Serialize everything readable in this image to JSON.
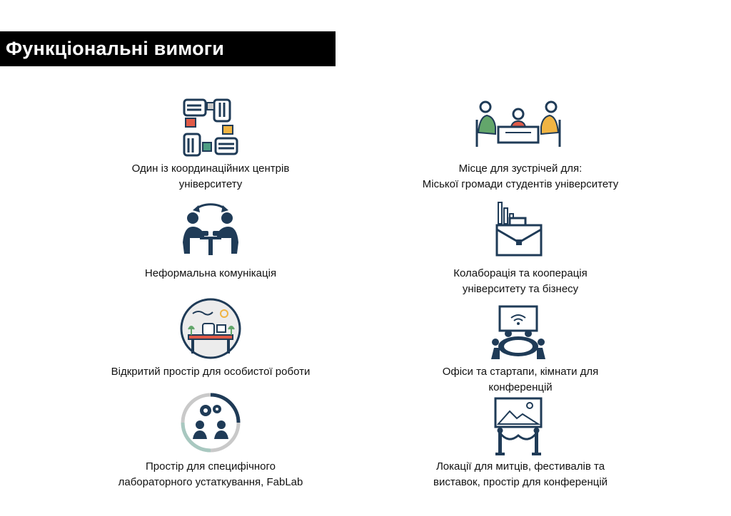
{
  "header": {
    "title": "Функціональні вимоги"
  },
  "colors": {
    "navy": "#1f3b57",
    "red": "#e05a47",
    "teal": "#4e9e84",
    "yellow": "#f0b443",
    "grey": "#c9c9c9",
    "green": "#63a66b"
  },
  "left": [
    {
      "icon": "hands-circle-icon",
      "lines": [
        "Один із координаційних центрів",
        "університету"
      ]
    },
    {
      "icon": "informal-conversation-icon",
      "lines": [
        "Неформальна комунікація"
      ]
    },
    {
      "icon": "workspace-desk-icon",
      "lines": [
        "Відкритий простір для особистої роботи"
      ]
    },
    {
      "icon": "gears-lab-icon",
      "lines": [
        "Простір для специфічного",
        "лабораторного устаткування, FabLab"
      ]
    }
  ],
  "right": [
    {
      "icon": "meeting-table-icon",
      "lines": [
        "Місце для зустрічей для:",
        "Міської громади студентів університету"
      ]
    },
    {
      "icon": "briefcase-chart-icon",
      "lines": [
        "Колаборація та кооперація",
        "університету та бізнесу"
      ]
    },
    {
      "icon": "conference-room-icon",
      "lines": [
        "Офіси та стартапи, кімнати для",
        "конференцій"
      ]
    },
    {
      "icon": "exhibition-painting-icon",
      "lines": [
        "Локації для митців, фестивалів та",
        "виставок, простір для конференцій"
      ]
    }
  ]
}
